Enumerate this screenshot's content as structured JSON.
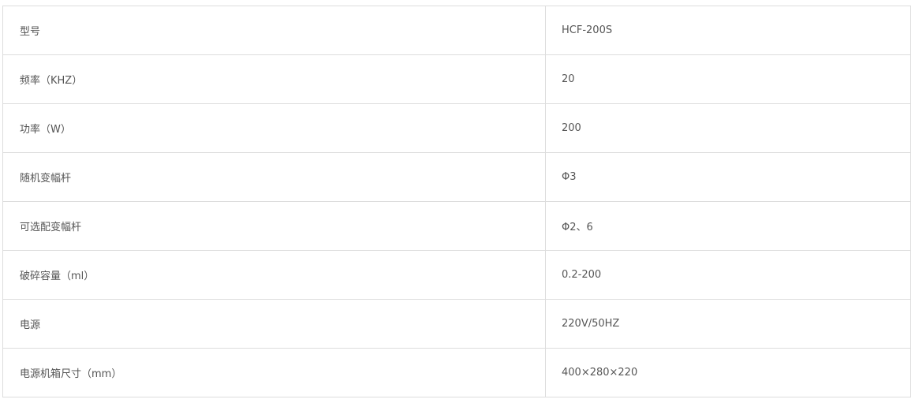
{
  "rows": [
    {
      "label": "型号",
      "value": "HCF-200S"
    },
    {
      "label": "频率（KHZ）",
      "value": "20"
    },
    {
      "label": "功率（W）",
      "value": "200"
    },
    {
      "label": "随机变幅杆",
      "value": "Φ3"
    },
    {
      "label": "可选配变幅杆",
      "value": "Φ2、6"
    },
    {
      "label": "破碎容量（ml）",
      "value": "0.2-200"
    },
    {
      "label": "电源",
      "value": "220V/50HZ"
    },
    {
      "label": "电源机箱尺寸（mm）",
      "value": "400×280×220"
    }
  ]
}
